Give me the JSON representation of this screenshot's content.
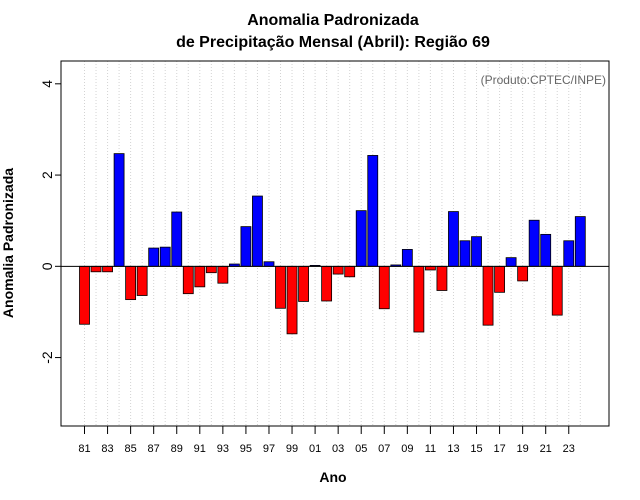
{
  "chart_data": {
    "type": "bar",
    "title": "Anomalia Padronizada",
    "subtitle": "de Precipitação Mensal (Abril): Região 69",
    "xlabel": "Ano",
    "ylabel": "Anomalia Padronizada",
    "credit": "(Produto:CPTEC/INPE)",
    "ylim": [
      -3.5,
      4.5
    ],
    "yticks": [
      -2,
      0,
      2,
      4
    ],
    "ytick_labels": [
      "-2",
      "0",
      "2",
      "4"
    ],
    "xtick_labels": [
      "81",
      "83",
      "85",
      "87",
      "89",
      "91",
      "93",
      "95",
      "97",
      "99",
      "01",
      "03",
      "05",
      "07",
      "09",
      "11",
      "13",
      "15",
      "17",
      "19",
      "21",
      "23"
    ],
    "categories": [
      "1981",
      "1982",
      "1983",
      "1984",
      "1985",
      "1986",
      "1987",
      "1988",
      "1989",
      "1990",
      "1991",
      "1992",
      "1993",
      "1994",
      "1995",
      "1996",
      "1997",
      "1998",
      "1999",
      "2000",
      "2001",
      "2002",
      "2003",
      "2004",
      "2005",
      "2006",
      "2007",
      "2008",
      "2009",
      "2010",
      "2011",
      "2012",
      "2013",
      "2014",
      "2015",
      "2016",
      "2017",
      "2018",
      "2019",
      "2020",
      "2021",
      "2022",
      "2023",
      "2024"
    ],
    "values": [
      -1.27,
      -0.12,
      -0.12,
      2.47,
      -0.73,
      -0.64,
      0.4,
      0.42,
      1.19,
      -0.6,
      -0.45,
      -0.14,
      -0.37,
      0.05,
      0.87,
      1.54,
      0.1,
      -0.92,
      -1.48,
      -0.77,
      0.02,
      -0.76,
      -0.17,
      -0.23,
      1.22,
      2.43,
      -0.93,
      0.03,
      0.37,
      -1.44,
      -0.08,
      -0.53,
      1.2,
      0.56,
      0.65,
      -1.29,
      -0.57,
      0.19,
      -0.32,
      1.01,
      0.7,
      -1.07,
      0.56,
      1.09
    ],
    "positive_color": "#0000ff",
    "negative_color": "#ff0000",
    "grid": "vertical dotted"
  }
}
